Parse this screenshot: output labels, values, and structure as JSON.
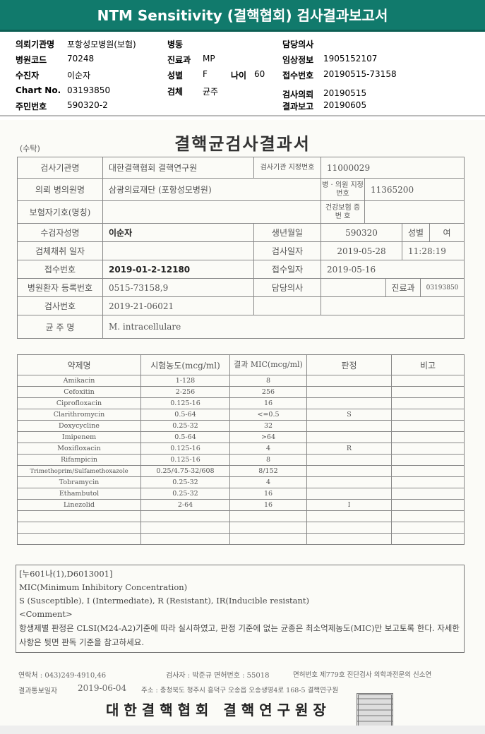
{
  "header": {
    "title": "NTM Sensitivity (결핵협회) 검사결과보고서",
    "color": "#117a6c"
  },
  "info": {
    "col1": [
      {
        "label": "의뢰기관명",
        "value": "포항성모병원(보험)"
      },
      {
        "label": "병원코드",
        "value": "70248"
      },
      {
        "label": "수진자",
        "value": "이순자"
      },
      {
        "label": "Chart No.",
        "value": "03193850"
      },
      {
        "label": "주민번호",
        "value": "590320-2"
      }
    ],
    "col2": [
      {
        "label": "병동",
        "value": ""
      },
      {
        "label": "진료과",
        "value": "MP"
      },
      {
        "label": "성별",
        "value": "F"
      },
      {
        "label": "검체",
        "value": "균주"
      }
    ],
    "age": {
      "label": "나이",
      "value": "60"
    },
    "col3": [
      {
        "label": "담당의사",
        "value": ""
      },
      {
        "label": "임상정보",
        "value": "1905152107"
      },
      {
        "label": "접수번호",
        "value": "20190515-73158"
      },
      {
        "label": "검사의뢰",
        "value": "20190515"
      },
      {
        "label": "결과보고",
        "value": "20190605"
      }
    ]
  },
  "doc": {
    "consign": "(수탁)",
    "title": "결핵균검사결과서",
    "r1": [
      "검사기관명",
      "대한결핵협회 결핵연구원",
      "검사기관 지정번호",
      "11000029"
    ],
    "r2": [
      "의뢰 병의원명",
      "삼광의료재단 (포항성모병원)",
      "병 · 의원 지정번호",
      "11365200"
    ],
    "r3": [
      "보험자기호(명칭)",
      "",
      "건강보험 증 번 호",
      ""
    ],
    "r4": [
      "수검자성명",
      "이순자",
      "생년월일",
      "590320",
      "성별",
      "여"
    ],
    "r5": [
      "검체채취 일자",
      "",
      "검사일자",
      "2019-05-28",
      "11:28:19"
    ],
    "r6": [
      "접수번호",
      "2019-01-2-12180",
      "접수일자",
      "2019-05-16"
    ],
    "r7": [
      "병원환자 등록번호",
      "0515-73158,9",
      "담당의사",
      "",
      "진료과",
      "03193850"
    ],
    "r8": [
      "검사번호",
      "2019-21-06021"
    ],
    "r9": [
      "균 주 명",
      "M. intracellulare"
    ],
    "mic_headers": [
      "약제명",
      "시험농도(mcg/ml)",
      "결과 MIC(mcg/ml)",
      "판정",
      "비고"
    ],
    "mic_rows": [
      [
        "Amikacin",
        "1-128",
        "8",
        "",
        ""
      ],
      [
        "Cefoxitin",
        "2-256",
        "256",
        "",
        ""
      ],
      [
        "Ciprofloxacin",
        "0.125-16",
        "16",
        "",
        ""
      ],
      [
        "Clarithromycin",
        "0.5-64",
        "<=0.5",
        "S",
        ""
      ],
      [
        "Doxycycline",
        "0.25-32",
        "32",
        "",
        ""
      ],
      [
        "Imipenem",
        "0.5-64",
        ">64",
        "",
        ""
      ],
      [
        "Moxifloxacin",
        "0.125-16",
        "4",
        "R",
        ""
      ],
      [
        "Rifampicin",
        "0.125-16",
        "8",
        "",
        ""
      ],
      [
        "Trimethoprim/Sulfamethoxazole",
        "0.25/4.75-32/608",
        "8/152",
        "",
        ""
      ],
      [
        "Tobramycin",
        "0.25-32",
        "4",
        "",
        ""
      ],
      [
        "Ethambutol",
        "0.25-32",
        "16",
        "",
        ""
      ],
      [
        "Linezolid",
        "2-64",
        "16",
        "I",
        ""
      ],
      [
        "",
        "",
        "",
        "",
        ""
      ],
      [
        "",
        "",
        "",
        "",
        ""
      ],
      [
        "",
        "",
        "",
        "",
        ""
      ]
    ],
    "notes": [
      "[누601나(1),D6013001]",
      "MIC(Minimum Inhibitory Concentration)",
      "S (Susceptible), I (Intermediate), R (Resistant), IR(Inducible resistant)",
      "<Comment>",
      " 항생제별 판정은 CLSI(M24-A2)기준에 따라 실시하였고, 판정 기준에 없는 균종은 최소억제농도(MIC)만 보고토록 한다. 자세한 사항은 뒷면 판독 기준을 참고하세요."
    ],
    "footer": {
      "contact": "연락처 : 043)249-4910,46",
      "examiner": "검사자 : 박준규  면허번호 : 55018",
      "license": "면허번호 제779호 진단검사 의학과전문의 신소연",
      "notice_label": "결과통보일자",
      "notice_date": "2019-06-04",
      "address": "주소 : 충청북도 청주시 흥덕구 오송읍 오송생명4로 168-5 결핵연구원",
      "org": "대한결핵협회  결핵연구원장",
      "stamp": "대한결핵협회결핵연구원장"
    }
  }
}
